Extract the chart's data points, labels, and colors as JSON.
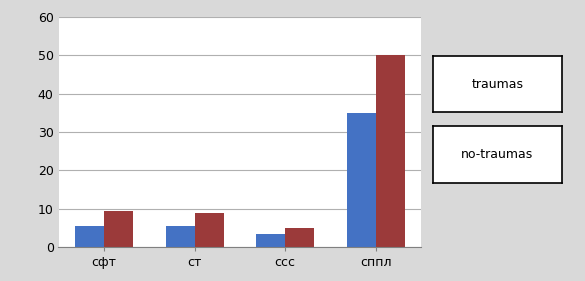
{
  "categories": [
    "сфт",
    "ст",
    "ссс",
    "сппл"
  ],
  "traumas": [
    5.5,
    5.5,
    3.5,
    35
  ],
  "no_traumas": [
    9.5,
    9.0,
    5.0,
    50
  ],
  "bar_color_traumas": "#4472c4",
  "bar_color_no_traumas": "#9b3a3a",
  "ylim": [
    0,
    60
  ],
  "yticks": [
    0,
    10,
    20,
    30,
    40,
    50,
    60
  ],
  "legend_traumas": "traumas",
  "legend_no_traumas": "no-traumas",
  "background_color": "#d9d9d9",
  "plot_bg_color": "#ffffff",
  "bar_width": 0.32,
  "fontsize_ticks": 9,
  "fontsize_legend": 9,
  "grid_color": "#b0b0b0"
}
